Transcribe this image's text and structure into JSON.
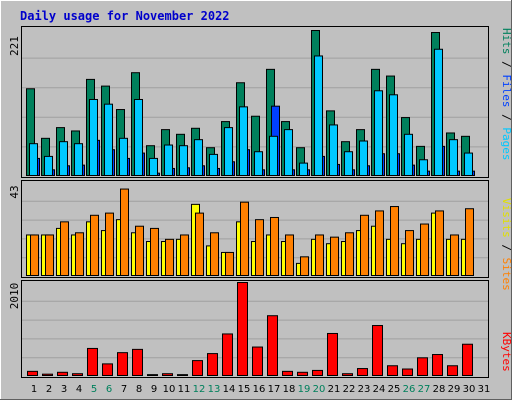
{
  "title": "Daily usage for November 2022",
  "colors": {
    "background": "#c0c0c0",
    "title": "#0000cc",
    "hits": "#00805c",
    "files": "#0040ff",
    "pages": "#00c8ff",
    "visits": "#ffff00",
    "sites": "#ff8000",
    "kbytes": "#ff0000",
    "weekend_label": "#00805c",
    "slash": "#000000"
  },
  "labels": {
    "hits": "Hits",
    "files": "Files",
    "pages": "Pages",
    "visits": "Visits",
    "sites": "Sites",
    "kbytes": "KBytes",
    "slash": "/"
  },
  "chart_data": [
    {
      "type": "bar",
      "panel": "hits-files-pages",
      "ymax_label": "221",
      "ylim": [
        0,
        221
      ],
      "categories": [
        "1",
        "2",
        "3",
        "4",
        "5",
        "6",
        "7",
        "8",
        "9",
        "10",
        "11",
        "12",
        "13",
        "14",
        "15",
        "16",
        "17",
        "18",
        "19",
        "20",
        "21",
        "22",
        "23",
        "24",
        "25",
        "26",
        "27",
        "28",
        "29",
        "30",
        "31"
      ],
      "series": [
        {
          "name": "Hits",
          "values": [
            131,
            57,
            73,
            68,
            145,
            135,
            100,
            155,
            46,
            70,
            63,
            72,
            43,
            82,
            140,
            90,
            160,
            82,
            43,
            218,
            98,
            52,
            70,
            160,
            150,
            88,
            45,
            215,
            65,
            60,
            0
          ]
        },
        {
          "name": "Files",
          "values": [
            27,
            10,
            16,
            17,
            54,
            40,
            27,
            35,
            5,
            12,
            13,
            16,
            12,
            22,
            40,
            10,
            105,
            10,
            10,
            30,
            18,
            10,
            16,
            34,
            34,
            17,
            8,
            45,
            8,
            8,
            0
          ]
        },
        {
          "name": "Pages",
          "values": [
            49,
            30,
            52,
            49,
            115,
            108,
            57,
            115,
            27,
            47,
            46,
            55,
            33,
            73,
            104,
            37,
            60,
            70,
            20,
            180,
            77,
            37,
            53,
            128,
            122,
            63,
            25,
            190,
            55,
            35,
            0
          ]
        }
      ]
    },
    {
      "type": "bar",
      "panel": "visits-sites",
      "ymax_label": "43",
      "ylim": [
        0,
        43
      ],
      "categories": [
        "1",
        "2",
        "3",
        "4",
        "5",
        "6",
        "7",
        "8",
        "9",
        "10",
        "11",
        "12",
        "13",
        "14",
        "15",
        "16",
        "17",
        "18",
        "19",
        "20",
        "21",
        "22",
        "23",
        "24",
        "25",
        "26",
        "27",
        "28",
        "29",
        "30",
        "31"
      ],
      "series": [
        {
          "name": "Visits",
          "values": [
            19,
            19,
            22,
            19,
            25,
            21,
            26,
            20,
            16,
            16,
            17,
            33,
            14,
            11,
            25,
            16,
            19,
            16,
            6,
            17,
            15,
            16,
            21,
            23,
            17,
            15,
            17,
            29,
            17,
            17,
            0
          ]
        },
        {
          "name": "Sites",
          "values": [
            19,
            19,
            25,
            20,
            28,
            29,
            40,
            23,
            22,
            17,
            19,
            29,
            20,
            11,
            34,
            26,
            27,
            19,
            9,
            19,
            18,
            20,
            28,
            30,
            32,
            21,
            24,
            30,
            19,
            31,
            0
          ]
        }
      ]
    },
    {
      "type": "bar",
      "panel": "kbytes",
      "ymax_label": "2010",
      "ylim": [
        0,
        2010
      ],
      "categories": [
        "1",
        "2",
        "3",
        "4",
        "5",
        "6",
        "7",
        "8",
        "9",
        "10",
        "11",
        "12",
        "13",
        "14",
        "15",
        "16",
        "17",
        "18",
        "19",
        "20",
        "21",
        "22",
        "23",
        "24",
        "25",
        "26",
        "27",
        "28",
        "29",
        "30",
        "31"
      ],
      "series": [
        {
          "name": "KBytes",
          "values": [
            110,
            50,
            90,
            60,
            600,
            270,
            510,
            580,
            40,
            60,
            40,
            340,
            490,
            910,
            2010,
            630,
            1300,
            110,
            90,
            130,
            920,
            60,
            170,
            1090,
            230,
            160,
            400,
            470,
            230,
            690,
            0
          ]
        }
      ]
    }
  ],
  "weekend_days": [
    5,
    6,
    12,
    13,
    19,
    20,
    26,
    27
  ]
}
